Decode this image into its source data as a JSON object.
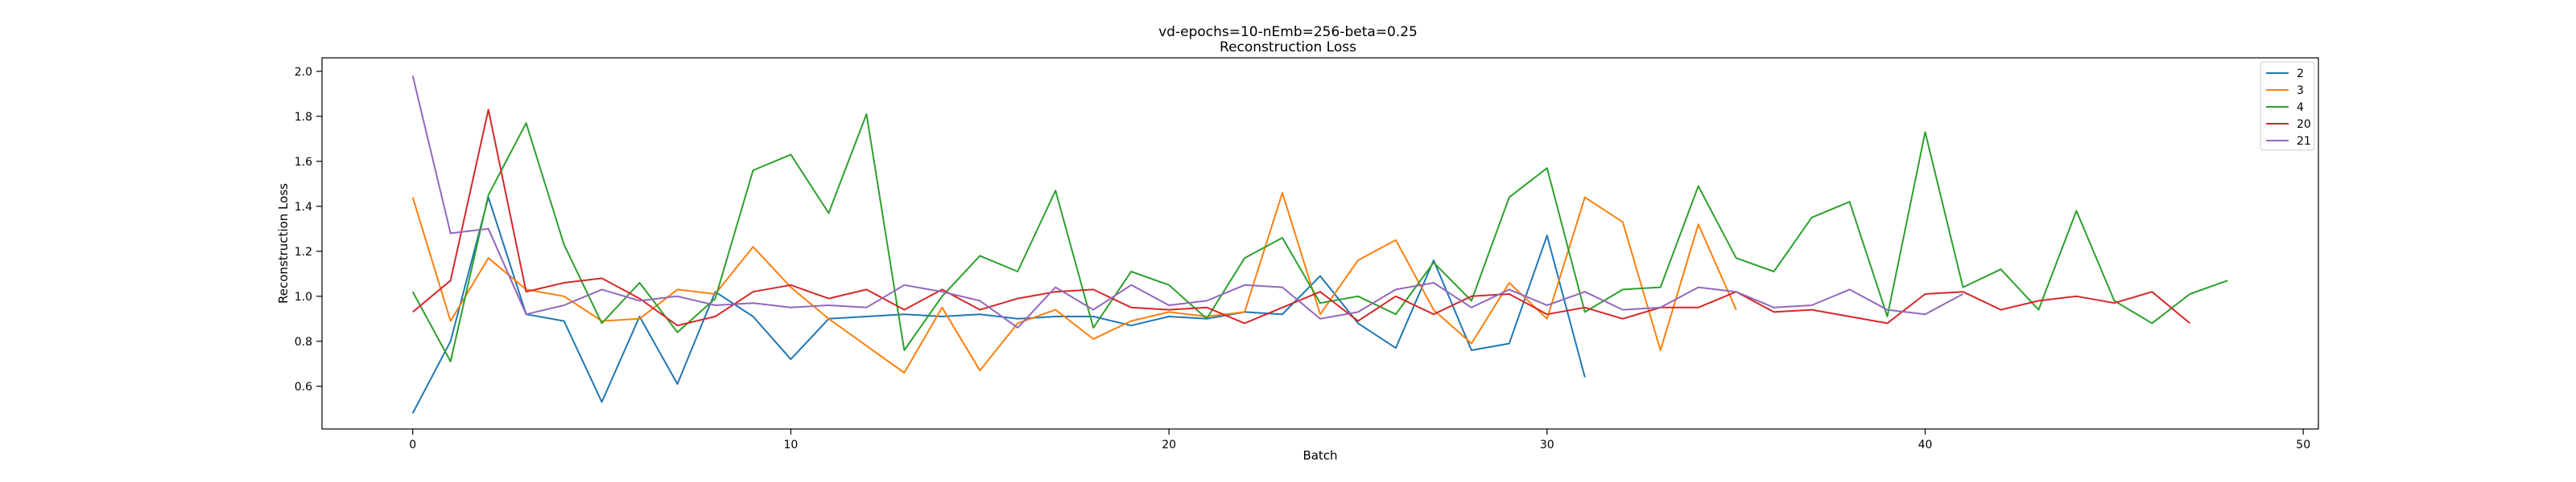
{
  "chart_data": {
    "type": "line",
    "title": "vd-epochs=10-nEmb=256-beta=0.25",
    "subtitle": "Reconstruction Loss",
    "xlabel": "Batch",
    "ylabel": "Reconstruction Loss",
    "xlim": [
      -2.4,
      50.4
    ],
    "ylim": [
      0.41,
      2.06
    ],
    "xticks": [
      0,
      10,
      20,
      30,
      40,
      50
    ],
    "yticks": [
      0.6,
      0.8,
      1.0,
      1.2,
      1.4,
      1.6,
      1.8,
      2.0
    ],
    "xtick_labels": [
      "0",
      "10",
      "20",
      "30",
      "40",
      "50"
    ],
    "ytick_labels": [
      "0.6",
      "0.8",
      "1.0",
      "1.2",
      "1.4",
      "1.6",
      "1.8",
      "2.0"
    ],
    "grid": false,
    "legend_position": "top-right",
    "series": [
      {
        "name": "2",
        "color": "#1f77b4",
        "values": [
          0.48,
          0.8,
          1.44,
          0.92,
          0.89,
          0.53,
          0.91,
          0.61,
          1.02,
          0.91,
          0.72,
          0.9,
          0.91,
          0.92,
          0.91,
          0.92,
          0.9,
          0.91,
          0.91,
          0.87,
          0.91,
          0.9,
          0.93,
          0.92,
          1.09,
          0.88,
          0.77,
          1.16,
          0.76,
          0.79,
          1.27,
          0.64
        ]
      },
      {
        "name": "3",
        "color": "#ff7f0e",
        "values": [
          1.44,
          0.89,
          1.17,
          1.03,
          1.0,
          0.89,
          0.9,
          1.03,
          1.01,
          1.22,
          1.04,
          0.9,
          0.78,
          0.66,
          0.95,
          0.67,
          0.88,
          0.94,
          0.81,
          0.89,
          0.93,
          0.91,
          0.93,
          1.46,
          0.92,
          1.16,
          1.25,
          0.94,
          0.79,
          1.06,
          0.9,
          1.44,
          1.33,
          0.76,
          1.32,
          0.94
        ]
      },
      {
        "name": "4",
        "color": "#2ca02c",
        "values": [
          1.02,
          0.71,
          1.45,
          1.77,
          1.23,
          0.88,
          1.06,
          0.84,
          0.99,
          1.56,
          1.63,
          1.37,
          1.81,
          0.76,
          1.0,
          1.18,
          1.11,
          1.47,
          0.86,
          1.11,
          1.05,
          0.9,
          1.17,
          1.26,
          0.97,
          1.0,
          0.92,
          1.15,
          0.98,
          1.44,
          1.57,
          0.93,
          1.03,
          1.04,
          1.49,
          1.17,
          1.11,
          1.35,
          1.42,
          0.91,
          1.73,
          1.04,
          1.12,
          0.94,
          1.38,
          0.98,
          0.88,
          1.01,
          1.07
        ]
      },
      {
        "name": "20",
        "color": "#d62728",
        "values": [
          0.93,
          1.07,
          1.83,
          1.02,
          1.06,
          1.08,
          0.99,
          0.87,
          0.91,
          1.02,
          1.05,
          0.99,
          1.03,
          0.94,
          1.03,
          0.94,
          0.99,
          1.02,
          1.03,
          0.95,
          0.94,
          0.95,
          0.88,
          0.95,
          1.02,
          0.89,
          1.0,
          0.92,
          1.0,
          1.01,
          0.92,
          0.95,
          0.9,
          0.95,
          0.95,
          1.02,
          0.93,
          0.94,
          0.91,
          0.88,
          1.01,
          1.02,
          0.94,
          0.98,
          1.0,
          0.97,
          1.02,
          0.88
        ]
      },
      {
        "name": "21",
        "color": "#9467bd",
        "values": [
          1.98,
          1.28,
          1.3,
          0.92,
          0.96,
          1.03,
          0.98,
          1.0,
          0.96,
          0.97,
          0.95,
          0.96,
          0.95,
          1.05,
          1.02,
          0.98,
          0.86,
          1.04,
          0.94,
          1.05,
          0.96,
          0.98,
          1.05,
          1.04,
          0.9,
          0.93,
          1.03,
          1.06,
          0.95,
          1.03,
          0.96,
          1.02,
          0.94,
          0.95,
          1.04,
          1.02,
          0.95,
          0.96,
          1.03,
          0.94,
          0.92,
          1.01
        ]
      }
    ]
  }
}
